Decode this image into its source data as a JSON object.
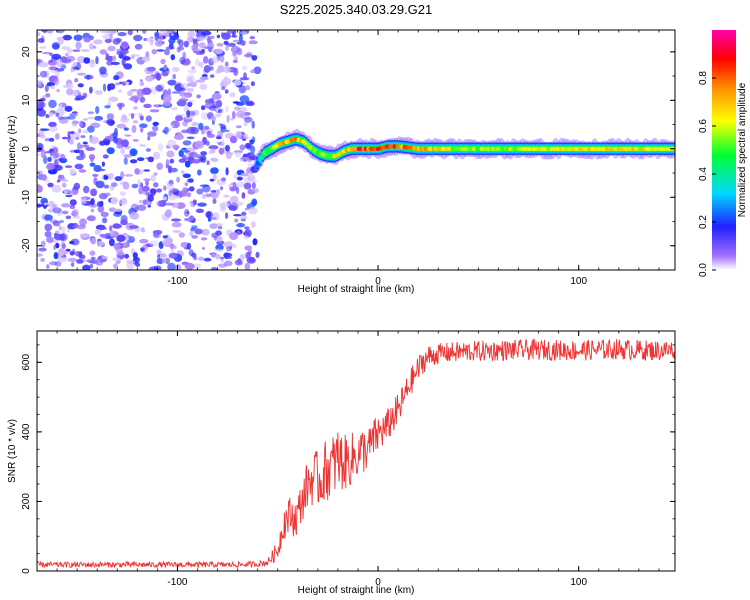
{
  "page_title": "S225.2025.340.03.29.G21",
  "chart_data": [
    {
      "type": "heatmap",
      "title": "S225.2025.340.03.29.G21",
      "xlabel": "Height of straight line (km)",
      "ylabel": "Frequency (Hz)",
      "xlim": [
        -170,
        148
      ],
      "ylim": [
        -25,
        24.5
      ],
      "xticks": [
        -100,
        0,
        100
      ],
      "xtick_labels": [
        "-100",
        "0",
        "100"
      ],
      "yticks": [
        -20,
        -10,
        0,
        10,
        20
      ],
      "ytick_labels": [
        "-20",
        "-10",
        "0",
        "10",
        "20"
      ],
      "noise_region_x": [
        -170,
        -60
      ],
      "colorbar": {
        "label": "Normalized spectral amplitude",
        "range": [
          0,
          1
        ],
        "ticks": [
          0.0,
          0.2,
          0.4,
          0.6,
          0.8
        ],
        "tick_labels": [
          "0.0",
          "0.2",
          "0.4",
          "0.6",
          "0.8"
        ],
        "colors": [
          "#ffffff",
          "#8a2be2",
          "#0000ff",
          "#00e5ff",
          "#00ff00",
          "#ffff00",
          "#ff8c00",
          "#ff0000",
          "#ff00c0"
        ]
      },
      "ridge": {
        "x": [
          -60,
          -57,
          -53,
          -49,
          -45,
          -41,
          -37,
          -33,
          -29,
          -25,
          -21,
          -17,
          -13,
          -9,
          -5,
          0,
          5,
          10,
          20,
          40,
          60,
          80,
          100,
          120,
          148
        ],
        "freq": [
          -3,
          -1,
          0,
          1,
          1.5,
          2,
          1.5,
          0,
          -1,
          -1.5,
          -1.5,
          -0.5,
          0,
          0,
          0,
          0,
          0.5,
          0.5,
          0,
          0,
          0,
          0,
          0,
          0,
          0
        ],
        "peak_amplitude": [
          0.25,
          0.45,
          0.55,
          0.65,
          0.7,
          0.75,
          0.6,
          0.6,
          0.5,
          0.55,
          0.6,
          0.65,
          0.75,
          0.85,
          0.8,
          0.8,
          0.85,
          0.8,
          0.75,
          0.55,
          0.55,
          0.6,
          0.65,
          0.65,
          0.6
        ]
      }
    },
    {
      "type": "line",
      "xlabel": "Height of straight line (km)",
      "ylabel": "SNR (10 * v/v)",
      "xlim": [
        -170,
        148
      ],
      "ylim": [
        0,
        690
      ],
      "xticks": [
        -100,
        0,
        100
      ],
      "xtick_labels": [
        "-100",
        "0",
        "100"
      ],
      "yticks": [
        0,
        200,
        400,
        600
      ],
      "ytick_labels": [
        "0",
        "200",
        "400",
        "600"
      ],
      "series": [
        {
          "name": "SNR",
          "color": "#ee3333",
          "x": [
            -170,
            -150,
            -130,
            -110,
            -90,
            -70,
            -60,
            -55,
            -50,
            -47,
            -44,
            -41,
            -38,
            -35,
            -32,
            -29,
            -26,
            -23,
            -20,
            -17,
            -14,
            -11,
            -8,
            -5,
            -2,
            1,
            4,
            7,
            10,
            13,
            16,
            19,
            22,
            25,
            30,
            40,
            50,
            60,
            70,
            80,
            90,
            100,
            110,
            120,
            130,
            140,
            148
          ],
          "y": [
            18,
            18,
            18,
            18,
            18,
            18,
            20,
            25,
            60,
            140,
            160,
            150,
            200,
            250,
            270,
            260,
            290,
            300,
            320,
            310,
            320,
            330,
            345,
            350,
            380,
            400,
            410,
            440,
            460,
            500,
            540,
            570,
            600,
            615,
            625,
            630,
            632,
            634,
            635,
            636,
            635,
            634,
            636,
            638,
            635,
            634,
            636
          ],
          "noise_amplitude": [
            8,
            8,
            8,
            8,
            8,
            8,
            8,
            10,
            30,
            50,
            55,
            55,
            60,
            70,
            80,
            80,
            90,
            90,
            100,
            80,
            80,
            70,
            70,
            60,
            60,
            55,
            50,
            50,
            50,
            45,
            40,
            40,
            35,
            35,
            30,
            30,
            30,
            30,
            30,
            30,
            30,
            30,
            30,
            30,
            30,
            30,
            30
          ]
        }
      ]
    }
  ]
}
